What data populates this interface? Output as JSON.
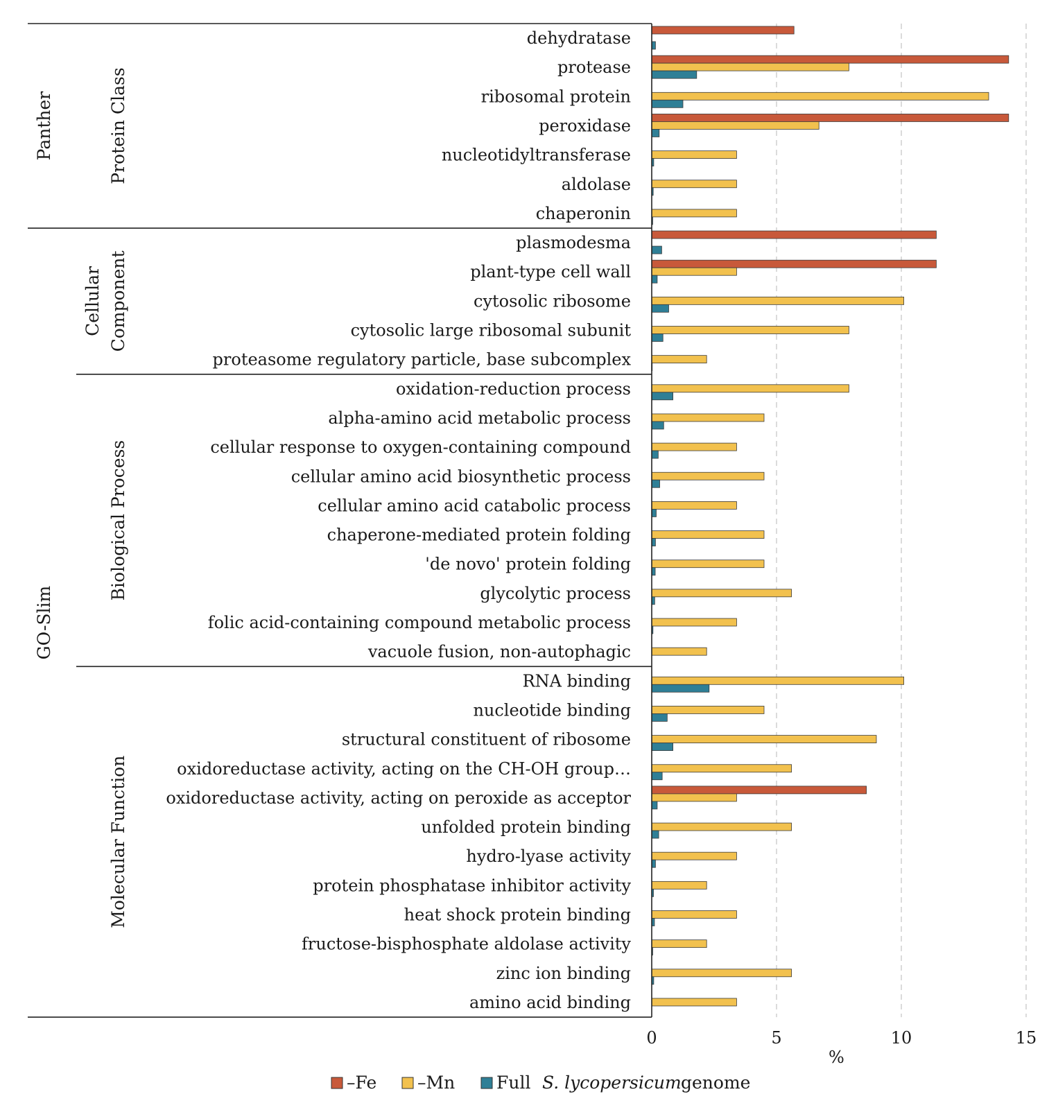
{
  "chart_data": {
    "type": "bar",
    "orientation": "horizontal",
    "xlabel": "%",
    "xlim": [
      0,
      15
    ],
    "xticks": [
      0,
      5,
      10,
      15
    ],
    "grid": "vertical dashed",
    "series": [
      {
        "name": "–Fe",
        "color": "#c8593a"
      },
      {
        "name": "–Mn",
        "color": "#f2c14e"
      },
      {
        "name": "Full",
        "color": "#2f7f96"
      }
    ],
    "legend": {
      "position": "bottom-center",
      "fe_label": "–Fe",
      "mn_label": "–Mn",
      "full_label": "Full",
      "species_label": "S. lycopersicum",
      "genome_label": "genome"
    },
    "outer_groups": [
      {
        "label": "Panther",
        "from": 0,
        "to": 6
      },
      {
        "label": "GO-Slim",
        "from": 7,
        "to": 33
      }
    ],
    "inner_groups": [
      {
        "label": "Protein Class",
        "from": 0,
        "to": 6
      },
      {
        "label": "Cellular",
        "label2": "Component",
        "from": 7,
        "to": 11
      },
      {
        "label": "Biological Process",
        "from": 12,
        "to": 21
      },
      {
        "label": "Molecular Function",
        "from": 22,
        "to": 33
      }
    ],
    "categories": [
      "dehydratase",
      "protease",
      "ribosomal protein",
      "peroxidase",
      "nucleotidyltransferase",
      "aldolase",
      "chaperonin",
      "plasmodesma",
      "plant-type cell wall",
      "cytosolic ribosome",
      "cytosolic large ribosomal subunit",
      "proteasome regulatory particle, base subcomplex",
      "oxidation-reduction process",
      "alpha-amino acid metabolic process",
      "cellular response to oxygen-containing compound",
      "cellular amino acid biosynthetic process",
      "cellular amino acid catabolic process",
      "chaperone-mediated protein folding",
      "'de novo' protein folding",
      "glycolytic process",
      "folic acid-containing compound metabolic process",
      "vacuole fusion, non-autophagic",
      "RNA binding",
      "nucleotide binding",
      "structural constituent of ribosome",
      "oxidoreductase activity, acting on the CH-OH group…",
      "oxidoreductase activity, acting on peroxide as acceptor",
      "unfolded protein binding",
      "hydro-lyase activity",
      "protein phosphatase inhibitor activity",
      "heat shock protein binding",
      "fructose-bisphosphate aldolase activity",
      "zinc ion binding",
      "amino acid binding"
    ],
    "values": {
      "fe": [
        5.7,
        14.3,
        0,
        14.3,
        0,
        0,
        0,
        11.4,
        11.4,
        0,
        0,
        0,
        0,
        0,
        0,
        0,
        0,
        0,
        0,
        0,
        0,
        0,
        0,
        0,
        0,
        0,
        8.6,
        0,
        0,
        0,
        0,
        0,
        0,
        0
      ],
      "mn": [
        0,
        7.9,
        13.5,
        6.7,
        3.4,
        3.4,
        3.4,
        0,
        3.4,
        10.1,
        7.9,
        2.2,
        7.9,
        4.5,
        3.4,
        4.5,
        3.4,
        4.5,
        4.5,
        5.6,
        3.4,
        2.2,
        10.1,
        4.5,
        9.0,
        5.6,
        3.4,
        5.6,
        3.4,
        2.2,
        3.4,
        2.2,
        5.6,
        3.4
      ],
      "full": [
        0.15,
        1.8,
        1.25,
        0.3,
        0.08,
        0.06,
        0.04,
        0.4,
        0.22,
        0.68,
        0.45,
        0.02,
        0.85,
        0.48,
        0.26,
        0.32,
        0.18,
        0.15,
        0.14,
        0.12,
        0.05,
        0.0,
        2.3,
        0.62,
        0.85,
        0.42,
        0.22,
        0.28,
        0.15,
        0.07,
        0.11,
        0.04,
        0.08,
        0.0
      ]
    }
  }
}
